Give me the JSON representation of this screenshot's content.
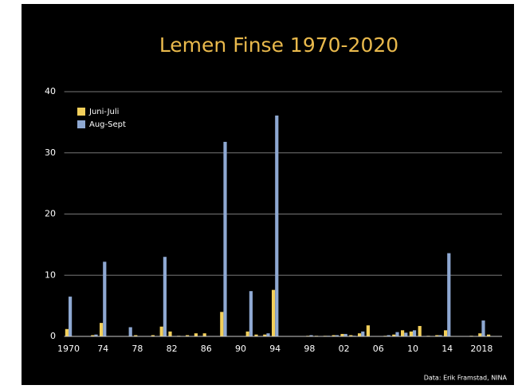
{
  "chart_data": {
    "type": "bar",
    "title": "Lemen Finse 1970-2020",
    "source": "Data: Erik Framstad, NINA",
    "categories": [
      "1970",
      null,
      null,
      null,
      "74",
      null,
      null,
      null,
      "78",
      null,
      null,
      null,
      "82",
      null,
      null,
      null,
      "86",
      null,
      null,
      null,
      "90",
      null,
      null,
      null,
      "94",
      null,
      null,
      null,
      "98",
      null,
      null,
      null,
      "02",
      null,
      null,
      null,
      "06",
      null,
      null,
      null,
      "10",
      null,
      null,
      null,
      "14",
      null,
      null,
      null,
      "2018",
      null
    ],
    "series": [
      {
        "name": "Juni-Juli",
        "color": "#f2cf5b",
        "values": [
          1.2,
          0,
          0,
          0.2,
          2.2,
          0,
          0,
          0,
          0.2,
          0,
          0.2,
          1.6,
          0.8,
          0.1,
          0.2,
          0.5,
          0.5,
          0,
          4,
          0,
          0,
          0.8,
          0.3,
          0.3,
          7.6,
          0,
          0,
          0,
          0.1,
          0.1,
          0.1,
          0.2,
          0.4,
          0.2,
          0.5,
          1.8,
          0,
          0.1,
          0.3,
          1,
          0.8,
          1.7,
          0.1,
          0.2,
          1,
          0,
          0,
          0.1,
          0.5,
          0.3
        ]
      },
      {
        "name": "Aug-Sept",
        "color": "#8ea8d2",
        "values": [
          6.5,
          0,
          0,
          0.3,
          12.2,
          0,
          0,
          1.5,
          0,
          0,
          0,
          13,
          0,
          0,
          0,
          0,
          0,
          0,
          31.8,
          0,
          0,
          7.4,
          0,
          0.5,
          36.1,
          0,
          0,
          0,
          0.2,
          0,
          0.1,
          0.2,
          0.4,
          0.1,
          0.8,
          0,
          0,
          0.2,
          0.7,
          0.6,
          1,
          0,
          0,
          0.2,
          13.6,
          0,
          0,
          0,
          2.6,
          0
        ]
      }
    ],
    "ylim": [
      0,
      40
    ],
    "yticks": [
      0,
      10,
      20,
      30,
      40
    ],
    "grid": true,
    "legend": "upper left"
  }
}
